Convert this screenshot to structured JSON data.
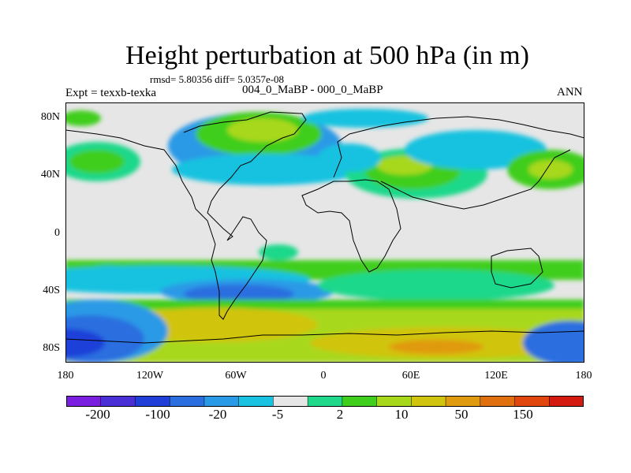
{
  "plot": {
    "title": "Height perturbation at 500 hPa (in m)",
    "stats": "rmsd= 5.80356 diff= 5.0357e-08",
    "expt_label": "Expt = texxb-texka",
    "subtitle": "004_0_MaBP - 000_0_MaBP",
    "season": "ANN"
  },
  "axes": {
    "lat_labels": [
      "80N",
      "40N",
      "0",
      "40S",
      "80S"
    ],
    "lon_labels": [
      "180",
      "120W",
      "60W",
      "0",
      "60E",
      "120E",
      "180"
    ]
  },
  "colorbar": {
    "colors": [
      "#7a1fe0",
      "#4a2fd6",
      "#1f3fd8",
      "#2a6ee0",
      "#2a9ae6",
      "#19c2e0",
      "#e6e6e6",
      "#1fd88a",
      "#3fce1c",
      "#a8d81a",
      "#d0c40e",
      "#e09a0e",
      "#e0700e",
      "#e0460e",
      "#d41a0e"
    ],
    "labels": [
      "-200",
      "-100",
      "-20",
      "-5",
      "2",
      "10",
      "50",
      "150"
    ]
  },
  "legend_colors": {
    "background": "#e6e6e6",
    "coastline": "#000000"
  }
}
